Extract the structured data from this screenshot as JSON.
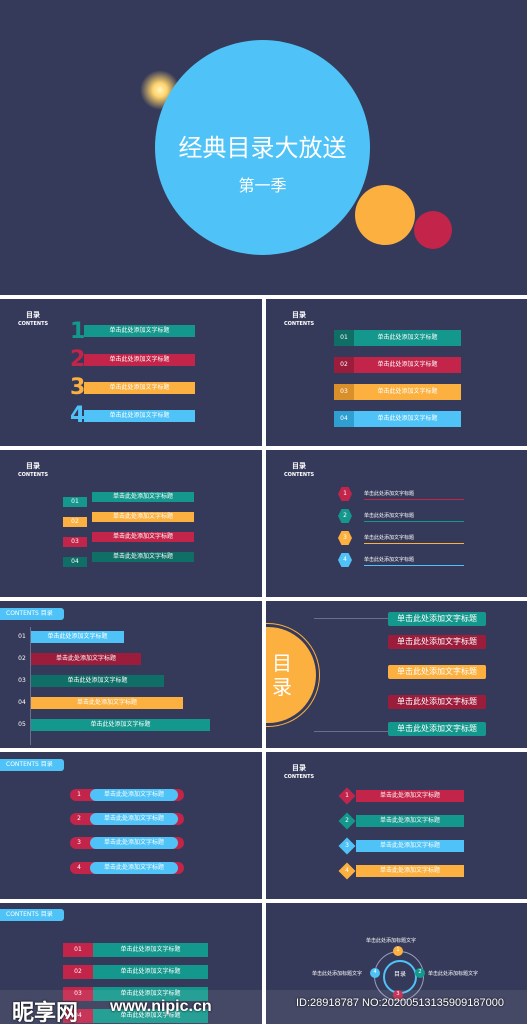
{
  "colors": {
    "bg": "#363a5a",
    "teal": "#14978c",
    "red": "#c3244a",
    "orange": "#fbb040",
    "blue": "#4fc3f7",
    "dark_teal": "#0f6e66"
  },
  "cover": {
    "title": "经典目录大放送",
    "subtitle": "第一季"
  },
  "heading": {
    "title": "目录",
    "sub": "CONTENTS"
  },
  "tag_label": "CONTENTS  目录",
  "item_label": "单击此处添加文字标题",
  "numbers": [
    "01",
    "02",
    "03",
    "04",
    "05"
  ],
  "digits": [
    "1",
    "2",
    "3",
    "4"
  ],
  "big_label": "目录",
  "slide12": {
    "top": "单击此处添加标题文字",
    "left": "单击此处添加标题文字",
    "right": "单击此处添加标题文字",
    "center": "目录",
    "n1": "1",
    "n2": "2",
    "n3": "3",
    "n4": "4"
  },
  "watermark": {
    "logo": "昵享网",
    "site": "www.nipic.cn",
    "id": "ID:28918787 NO:20200513135909187000"
  }
}
